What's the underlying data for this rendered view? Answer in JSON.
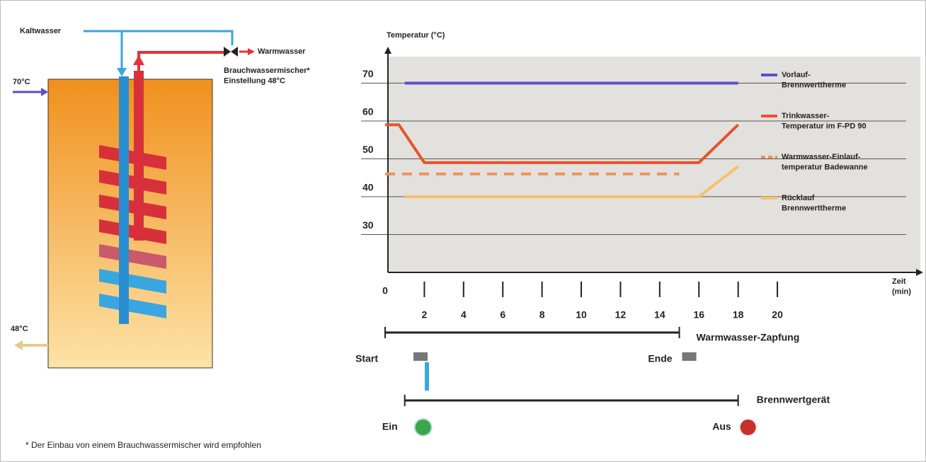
{
  "diagram": {
    "cold_water": "Kaltwasser",
    "warm_water": "Warmwasser",
    "mixer": "Brauchwassermischer*\nEinstellung 48°C",
    "inlet_temp": "70°C",
    "outlet_temp": "48°C",
    "footnote": "* Der Einbau von einem Brauchwassermischer wird empfohlen"
  },
  "chart_data": {
    "type": "line",
    "y_label": "Temperatur (°C)",
    "x_label": "Zeit\n(min)",
    "xlim": [
      0,
      27
    ],
    "xticks": [
      0,
      2,
      4,
      6,
      8,
      10,
      12,
      14,
      16,
      18,
      20
    ],
    "ylim": [
      20,
      77
    ],
    "yticks": [
      30,
      40,
      50,
      60,
      70
    ],
    "grid": true,
    "series": [
      {
        "name": "Vorlauf-\nBrennwerttherme",
        "color": "#5a4fcf",
        "x": [
          1,
          18
        ],
        "values": [
          70,
          70
        ]
      },
      {
        "name": "Trinkwasser-\nTemperatur im F-PD 90",
        "color": "#e8532a",
        "x": [
          0,
          0.7,
          2,
          16,
          18
        ],
        "values": [
          59,
          59,
          49,
          49,
          59
        ]
      },
      {
        "name": "Warmwasser-Einlauf-\ntemperatur Badewanne",
        "color": "#f0935a",
        "dashed": true,
        "x": [
          0,
          15
        ],
        "values": [
          46,
          46
        ]
      },
      {
        "name": "Rücklauf\nBrennwerttherme",
        "color": "#f5c26b",
        "x": [
          1,
          16,
          18
        ],
        "values": [
          40,
          40,
          48
        ]
      }
    ],
    "timelines": [
      {
        "label": "Warmwasser-Zapfung",
        "start": 0,
        "end": 15,
        "start_label": "Start",
        "end_label": "Ende"
      },
      {
        "label": "Brennwertgerät",
        "start": 1,
        "end": 18,
        "start_label": "Ein",
        "end_label": "Aus"
      }
    ]
  }
}
